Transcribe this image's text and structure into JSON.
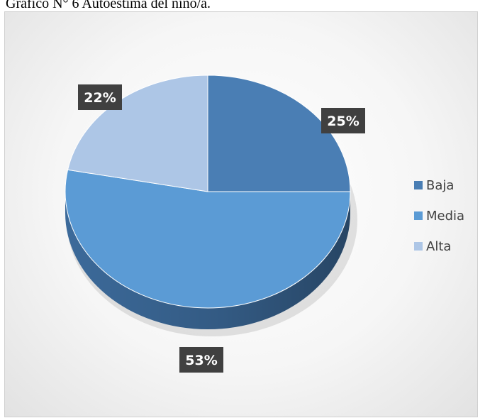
{
  "caption": "Grafico N° 6 Autoestima del niño/a.",
  "chart_data": {
    "type": "pie",
    "title": "",
    "categories": [
      "Baja",
      "Media",
      "Alta"
    ],
    "values": [
      25,
      53,
      22
    ],
    "data_labels": [
      "25%",
      "53%",
      "22%"
    ],
    "colors": [
      "#4a7eb4",
      "#5b9bd5",
      "#adc6e6"
    ],
    "side_colors": [
      "#2f5379",
      "#3c6a9a",
      "#7b94b3"
    ],
    "legend": {
      "position": "right",
      "entries": [
        "Baja",
        "Media",
        "Alta"
      ]
    },
    "style": "3d"
  }
}
